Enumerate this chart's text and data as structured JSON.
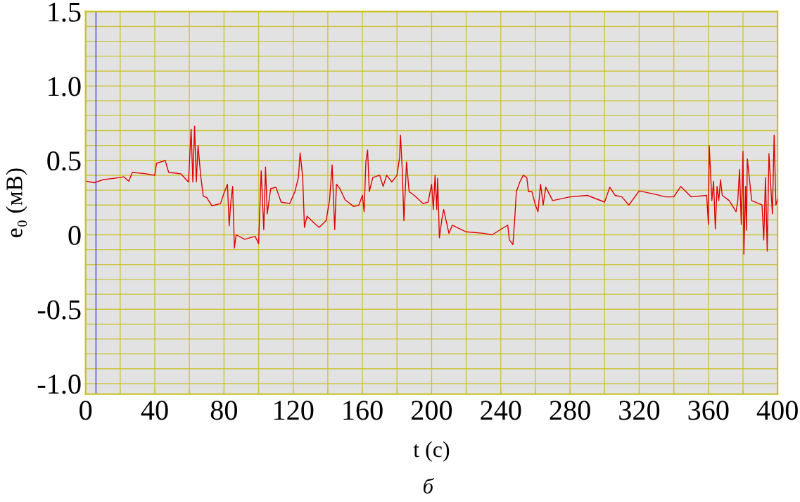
{
  "chart_data": {
    "type": "line",
    "xlabel": "t (c)",
    "ylabel": "e₀ (мВ)",
    "annotations": [
      "б"
    ],
    "x": [
      0.7,
      5,
      10,
      20,
      22,
      25,
      27,
      35,
      40,
      41,
      46,
      48,
      55,
      59.5,
      60,
      61,
      62,
      63,
      64,
      65,
      66.5,
      68,
      70,
      73,
      78,
      80,
      82,
      83,
      84,
      85,
      86,
      87,
      92,
      98,
      100,
      101.5,
      103,
      104,
      105,
      107,
      110,
      113,
      118,
      121,
      123,
      124,
      125.5,
      126.5,
      128,
      132,
      135,
      139,
      141,
      142.5,
      144,
      145,
      147,
      150,
      155,
      158,
      160,
      161,
      162,
      163,
      164,
      166,
      170,
      172,
      174,
      177,
      180,
      181.5,
      182,
      183,
      184,
      185.5,
      187,
      190,
      195,
      198,
      200,
      201,
      202,
      203,
      203.5,
      204.5,
      206,
      207,
      210,
      212,
      220,
      230,
      235,
      244,
      245,
      247,
      248,
      249,
      251,
      253,
      255,
      256,
      258,
      260,
      261.5,
      263,
      264.5,
      266,
      270,
      280,
      290,
      300,
      303,
      306,
      310,
      314,
      320,
      330,
      335,
      340,
      344,
      350,
      359,
      360,
      360.5,
      362,
      363,
      364,
      365,
      366,
      367,
      368,
      372,
      376,
      377,
      378,
      379,
      380,
      380.5,
      381.5,
      382,
      382.5,
      385,
      391,
      392,
      393,
      394,
      395,
      396,
      397,
      398,
      399,
      400
    ],
    "series": [
      {
        "color": "#e00000",
        "values": [
          0.36,
          0.35,
          0.37,
          0.385,
          0.39,
          0.36,
          0.42,
          0.41,
          0.4,
          0.48,
          0.5,
          0.42,
          0.41,
          0.355,
          0.48,
          0.71,
          0.355,
          0.73,
          0.355,
          0.6,
          0.4,
          0.26,
          0.25,
          0.195,
          0.21,
          0.28,
          0.34,
          0.06,
          0.23,
          0.325,
          -0.09,
          0.0,
          -0.03,
          -0.01,
          -0.06,
          0.43,
          0.035,
          0.455,
          0.14,
          0.31,
          0.32,
          0.22,
          0.21,
          0.29,
          0.385,
          0.55,
          0.385,
          0.05,
          0.125,
          0.08,
          0.05,
          0.095,
          0.23,
          0.47,
          0.035,
          0.34,
          0.31,
          0.235,
          0.19,
          0.2,
          0.265,
          0.155,
          0.49,
          0.57,
          0.29,
          0.385,
          0.4,
          0.325,
          0.4,
          0.355,
          0.4,
          0.52,
          0.67,
          0.445,
          0.095,
          0.49,
          0.29,
          0.265,
          0.21,
          0.22,
          0.34,
          0.17,
          0.4,
          0.17,
          0.38,
          -0.02,
          0.11,
          0.17,
          0.01,
          0.065,
          0.02,
          0.01,
          0.0,
          0.065,
          -0.035,
          -0.065,
          0.095,
          0.29,
          0.355,
          0.4,
          0.385,
          0.29,
          0.29,
          0.2,
          0.155,
          0.34,
          0.2,
          0.32,
          0.23,
          0.255,
          0.265,
          0.22,
          0.32,
          0.265,
          0.255,
          0.2,
          0.295,
          0.27,
          0.255,
          0.255,
          0.325,
          0.255,
          0.265,
          0.07,
          0.6,
          0.23,
          0.36,
          0.04,
          0.325,
          0.23,
          0.37,
          0.265,
          0.23,
          0.155,
          0.23,
          0.44,
          0.07,
          0.56,
          -0.13,
          0.325,
          0.03,
          0.51,
          0.23,
          0.2,
          -0.035,
          0.385,
          -0.11,
          0.545,
          0.34,
          0.14,
          0.67,
          0.2,
          0.24
        ]
      }
    ],
    "xlim": [
      0,
      400
    ],
    "xticks": [
      0,
      {
        "value": 20,
        "label": null
      },
      40,
      {
        "value": 60,
        "label": null
      },
      80,
      {
        "value": 100,
        "label": null
      },
      120,
      {
        "value": 140,
        "label": null
      },
      160,
      {
        "value": 180,
        "label": null
      },
      200,
      {
        "value": 220,
        "label": null
      },
      240,
      {
        "value": 260,
        "label": null
      },
      280,
      {
        "value": 300,
        "label": null
      },
      320,
      {
        "value": 340,
        "label": null
      },
      360,
      {
        "value": 380,
        "label": null
      },
      400
    ],
    "ylim": [
      -1.07,
      1.5
    ],
    "yticks": [
      {
        "value": -1,
        "label": "-1.0"
      },
      {
        "value": -0.9,
        "label": null
      },
      {
        "value": -0.8,
        "label": null
      },
      {
        "value": -0.7,
        "label": null
      },
      {
        "value": -0.6,
        "label": null
      },
      -0.5,
      {
        "value": -0.4,
        "label": null
      },
      {
        "value": -0.3,
        "label": null
      },
      {
        "value": -0.2,
        "label": null
      },
      {
        "value": -0.1,
        "label": null
      },
      0,
      {
        "value": 0.1,
        "label": null
      },
      {
        "value": 0.2,
        "label": null
      },
      {
        "value": 0.3,
        "label": null
      },
      {
        "value": 0.4,
        "label": null
      },
      0.5,
      {
        "value": 0.6,
        "label": null
      },
      {
        "value": 0.7,
        "label": null
      },
      {
        "value": 0.8,
        "label": null
      },
      {
        "value": 0.9,
        "label": null
      },
      {
        "value": 1,
        "label": "1.0"
      },
      {
        "value": 1.1,
        "label": null
      },
      {
        "value": 1.2,
        "label": null
      },
      {
        "value": 1.3,
        "label": null
      },
      {
        "value": 1.4,
        "label": null
      },
      1.5
    ],
    "ref_lines": [
      {
        "axis": "x",
        "value": 6,
        "color": "#4040e0"
      }
    ],
    "grid": true,
    "legend": false,
    "marker": "none",
    "line_style": "solid"
  }
}
